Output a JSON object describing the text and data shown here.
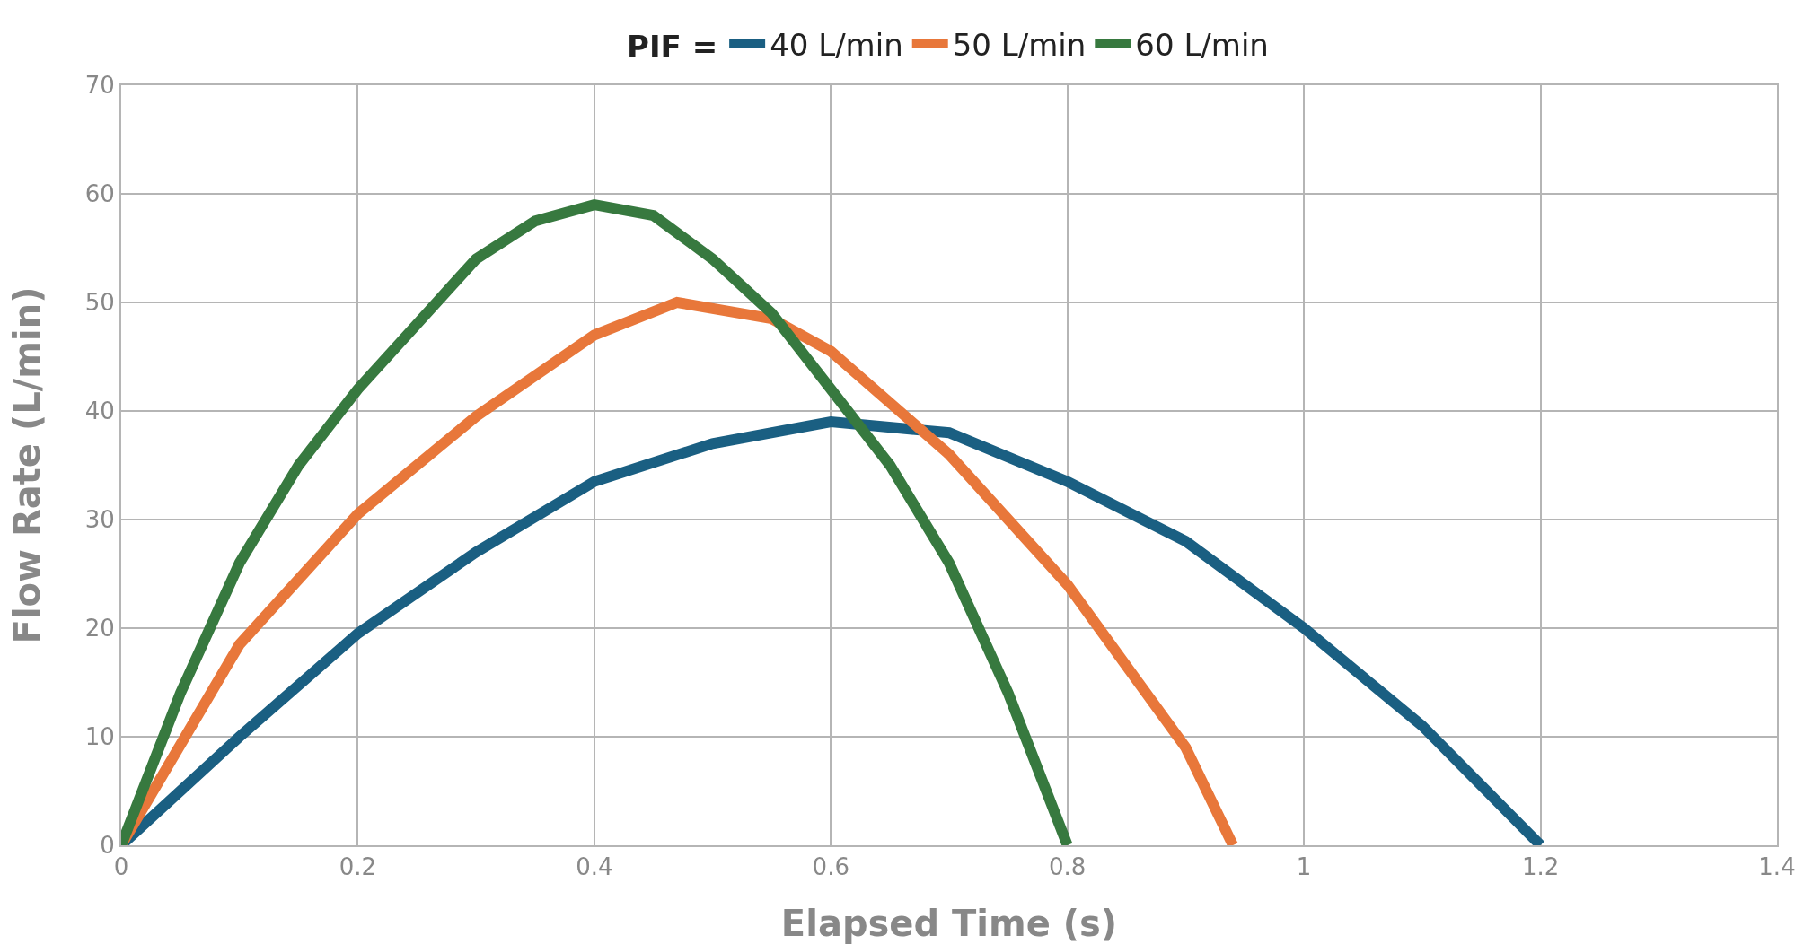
{
  "chart_data": {
    "type": "line",
    "xlabel": "Elapsed Time (s)",
    "ylabel": "Flow Rate (L/min)",
    "legend_title": "PIF =",
    "legend": "top",
    "grid": true,
    "line_style": "solid",
    "xlim": [
      0,
      1.4
    ],
    "xticks": [
      0,
      0.2,
      0.4,
      0.6,
      0.8,
      1,
      1.2,
      1.4
    ],
    "ylim": [
      0,
      70
    ],
    "yticks": [
      0,
      10,
      20,
      30,
      40,
      50,
      60,
      70
    ],
    "series": [
      {
        "name": "40 L/min",
        "color": "#1a5f82",
        "x": [
          0,
          0.1,
          0.2,
          0.3,
          0.4,
          0.5,
          0.6,
          0.7,
          0.8,
          0.9,
          1.0,
          1.1,
          1.2
        ],
        "values": [
          0,
          10,
          19.5,
          27,
          33.5,
          37,
          39,
          38,
          33.5,
          28,
          20,
          11,
          0
        ]
      },
      {
        "name": "50 L/min",
        "color": "#e8773a",
        "x": [
          0,
          0.1,
          0.2,
          0.3,
          0.4,
          0.47,
          0.55,
          0.6,
          0.7,
          0.8,
          0.9,
          0.94
        ],
        "values": [
          0,
          18.5,
          30.5,
          39.5,
          47,
          50,
          48.5,
          45.5,
          36,
          24,
          9,
          0
        ]
      },
      {
        "name": "60 L/min",
        "color": "#37793f",
        "x": [
          0,
          0.05,
          0.1,
          0.15,
          0.2,
          0.25,
          0.3,
          0.35,
          0.4,
          0.45,
          0.5,
          0.55,
          0.6,
          0.65,
          0.7,
          0.75,
          0.8
        ],
        "values": [
          0,
          14,
          26,
          35,
          42,
          48,
          54,
          57.5,
          59,
          58,
          54,
          49,
          42,
          35,
          26,
          14,
          0
        ]
      }
    ]
  }
}
